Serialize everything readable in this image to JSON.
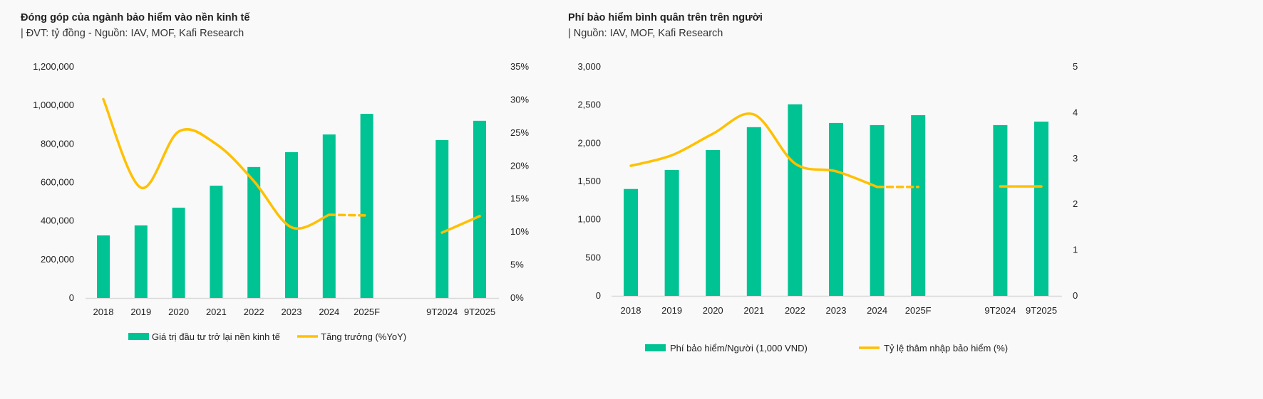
{
  "colors": {
    "bar": "#00c393",
    "line": "#ffc000",
    "background": "#f9f9f9",
    "axis": "#d9d9d9"
  },
  "chart_data": [
    {
      "type": "bar+line",
      "title": "Đóng góp của ngành bảo hiểm vào nền kinh tế",
      "subtitle": "| ĐVT: tỷ đồng - Nguồn: IAV, MOF, Kafi Research",
      "categories": [
        "2018",
        "2019",
        "2020",
        "2021",
        "2022",
        "2023",
        "2024",
        "2025F",
        "9T2024",
        "9T2025"
      ],
      "y_left": {
        "range": [
          0,
          1200000
        ],
        "ticks": [
          "0",
          "200,000",
          "400,000",
          "600,000",
          "800,000",
          "1,000,000",
          "1,200,000"
        ]
      },
      "y_right": {
        "range": [
          0,
          35
        ],
        "unit": "%",
        "ticks": [
          "0%",
          "5%",
          "10%",
          "15%",
          "20%",
          "25%",
          "30%",
          "35%"
        ]
      },
      "grid": false,
      "legend_placement": "bottom",
      "series": [
        {
          "name": "Giá trị đầu tư trở lại nền kinh tế",
          "type": "bar",
          "axis": "left",
          "values": [
            325000,
            377000,
            469000,
            583000,
            680000,
            757000,
            849000,
            956000,
            820000,
            920000
          ]
        },
        {
          "name": "Tăng trưởng (%YoY)",
          "type": "line",
          "axis": "right",
          "smooth": true,
          "values": [
            30.1,
            16.7,
            25.2,
            23.3,
            17.7,
            10.7,
            12.6,
            12.5,
            9.9,
            12.4
          ],
          "dashed_segments": [
            [
              6,
              7
            ]
          ],
          "breaks_after": [
            7
          ]
        }
      ]
    },
    {
      "type": "bar+line",
      "title": "Phí bảo hiểm bình quân trên trên người",
      "subtitle": "| Nguồn: IAV, MOF, Kafi Research",
      "categories": [
        "2018",
        "2019",
        "2020",
        "2021",
        "2022",
        "2023",
        "2024",
        "2025F",
        "9T2024",
        "9T2025"
      ],
      "y_left": {
        "range": [
          0,
          3000
        ],
        "ticks": [
          "0",
          "500",
          "1,000",
          "1,500",
          "2,000",
          "2,500",
          "3,000"
        ]
      },
      "y_right": {
        "range": [
          0,
          5
        ],
        "ticks": [
          "0",
          "1",
          "2",
          "3",
          "4",
          "5"
        ]
      },
      "grid": false,
      "legend_placement": "bottom",
      "series": [
        {
          "name": "Phí bảo hiểm/Người (1,000 VND)",
          "type": "bar",
          "axis": "left",
          "values": [
            1400,
            1650,
            1910,
            2210,
            2510,
            2265,
            2237,
            2367,
            2237,
            2283
          ]
        },
        {
          "name": "Tỷ lệ thâm nhập bảo hiểm (%)",
          "type": "line",
          "axis": "right",
          "smooth": true,
          "values": [
            2.84,
            3.07,
            3.54,
            3.96,
            2.89,
            2.72,
            2.38,
            2.38,
            2.39,
            2.39
          ],
          "dashed_segments": [
            [
              6,
              7
            ]
          ],
          "breaks_after": [
            7
          ]
        }
      ]
    }
  ]
}
